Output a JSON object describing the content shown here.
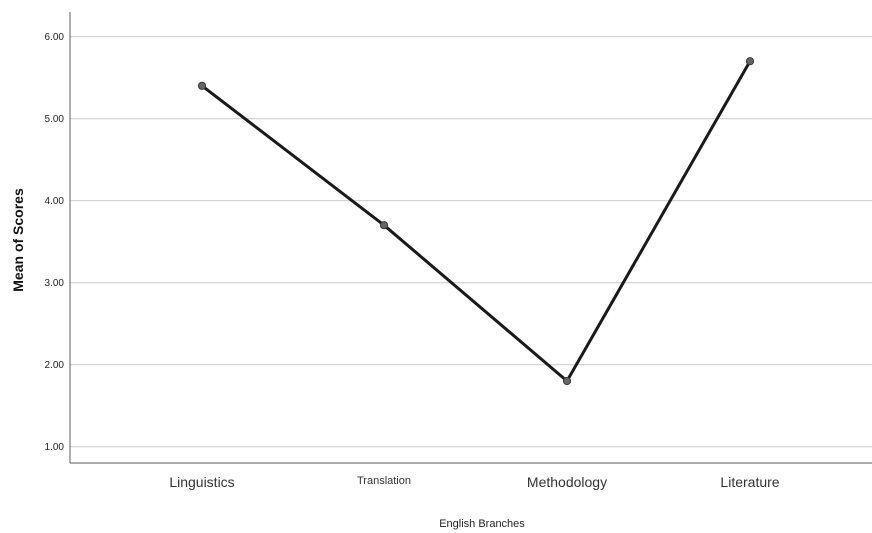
{
  "chart_data": {
    "type": "line",
    "title": "",
    "xlabel": "English Branches",
    "ylabel": "Mean of Scores",
    "categories": [
      "Linguistics",
      "Translation",
      "Methodology",
      "Literature"
    ],
    "series": [
      {
        "values": [
          5.4,
          3.7,
          1.8,
          5.7
        ]
      }
    ],
    "ylim": [
      0.8,
      6.3
    ],
    "yticks": [
      "1.00",
      "2.00",
      "3.00",
      "4.00",
      "5.00",
      "6.00"
    ],
    "grid": true,
    "colors": {
      "line": "#1a1a1a",
      "marker": "#666666",
      "grid": "#d4d4d4",
      "axis": "#777777"
    }
  }
}
